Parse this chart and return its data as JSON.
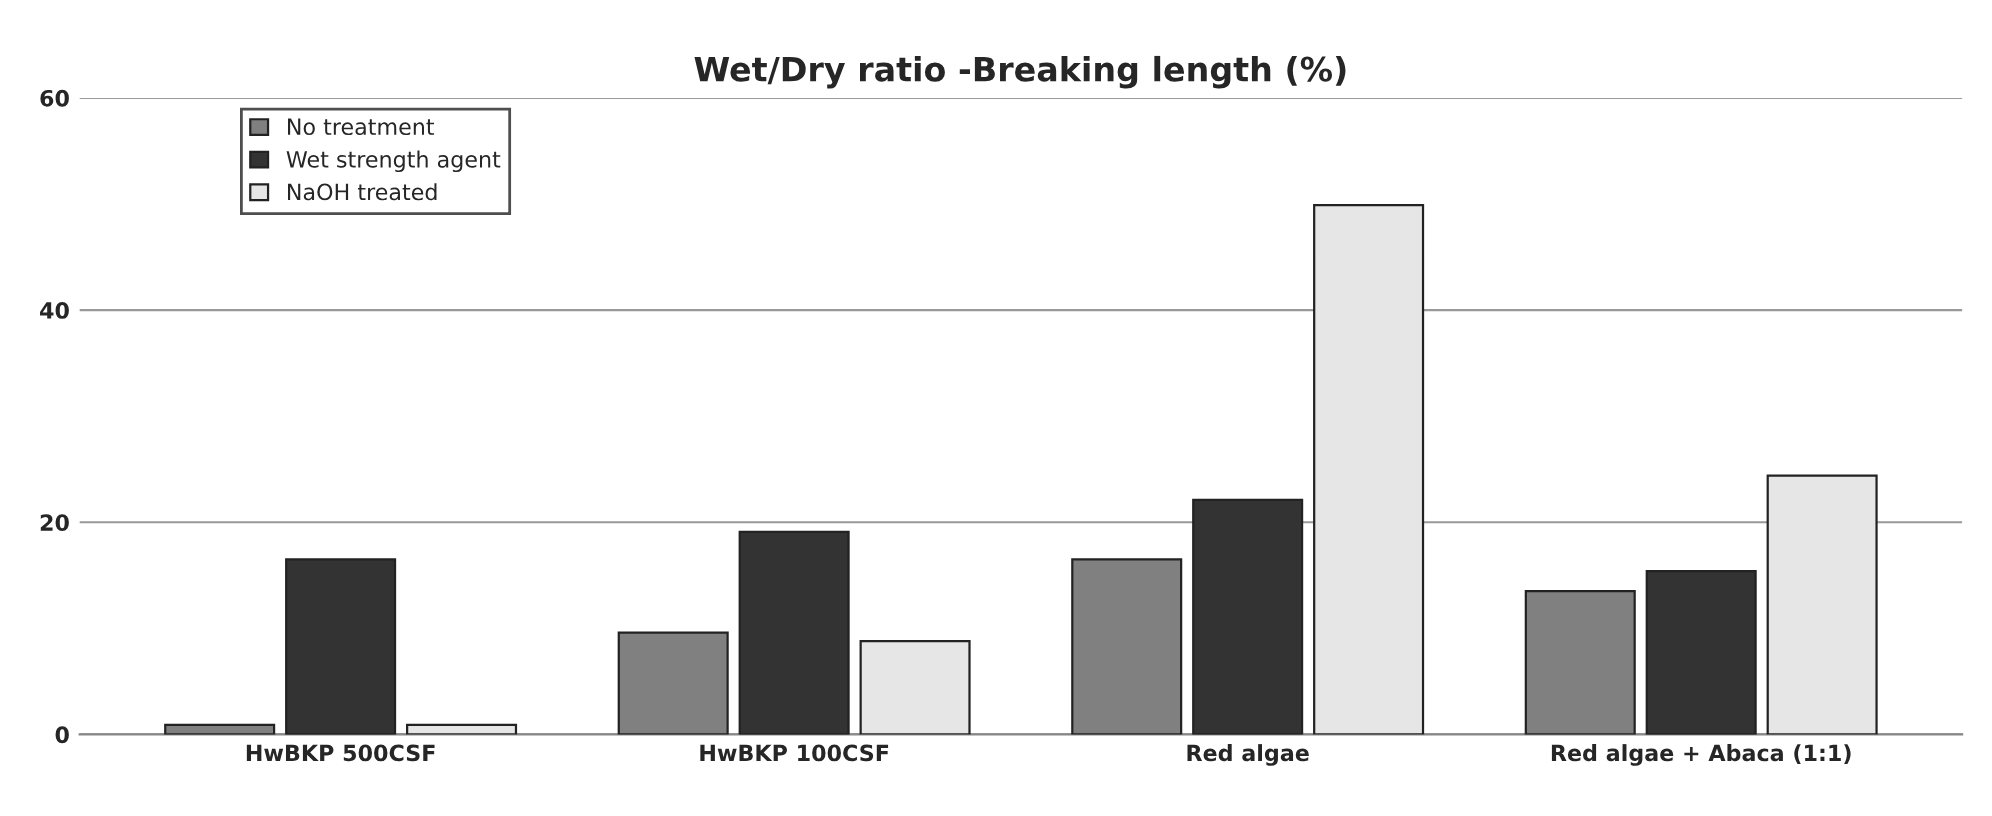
{
  "chart_data": {
    "type": "bar",
    "title": "Wet/Dry ratio -Breaking length (%)",
    "categories": [
      "HwBKP 500CSF",
      "HwBKP 100CSF",
      "Red algae",
      "Red algae + Abaca (1:1)"
    ],
    "series": [
      {
        "name": "No treatment",
        "color": "#808080",
        "values": [
          0.9,
          9.6,
          16.5,
          13.5
        ]
      },
      {
        "name": "Wet strength agent",
        "color": "#333333",
        "values": [
          16.5,
          19.1,
          22.1,
          15.4
        ]
      },
      {
        "name": "NaOH treated",
        "color": "#e6e6e6",
        "values": [
          0.9,
          8.8,
          49.9,
          24.4
        ]
      }
    ],
    "ylim": [
      0,
      60
    ],
    "yticks": [
      0,
      20,
      40,
      60
    ],
    "grid": "y",
    "legend": "top left"
  }
}
